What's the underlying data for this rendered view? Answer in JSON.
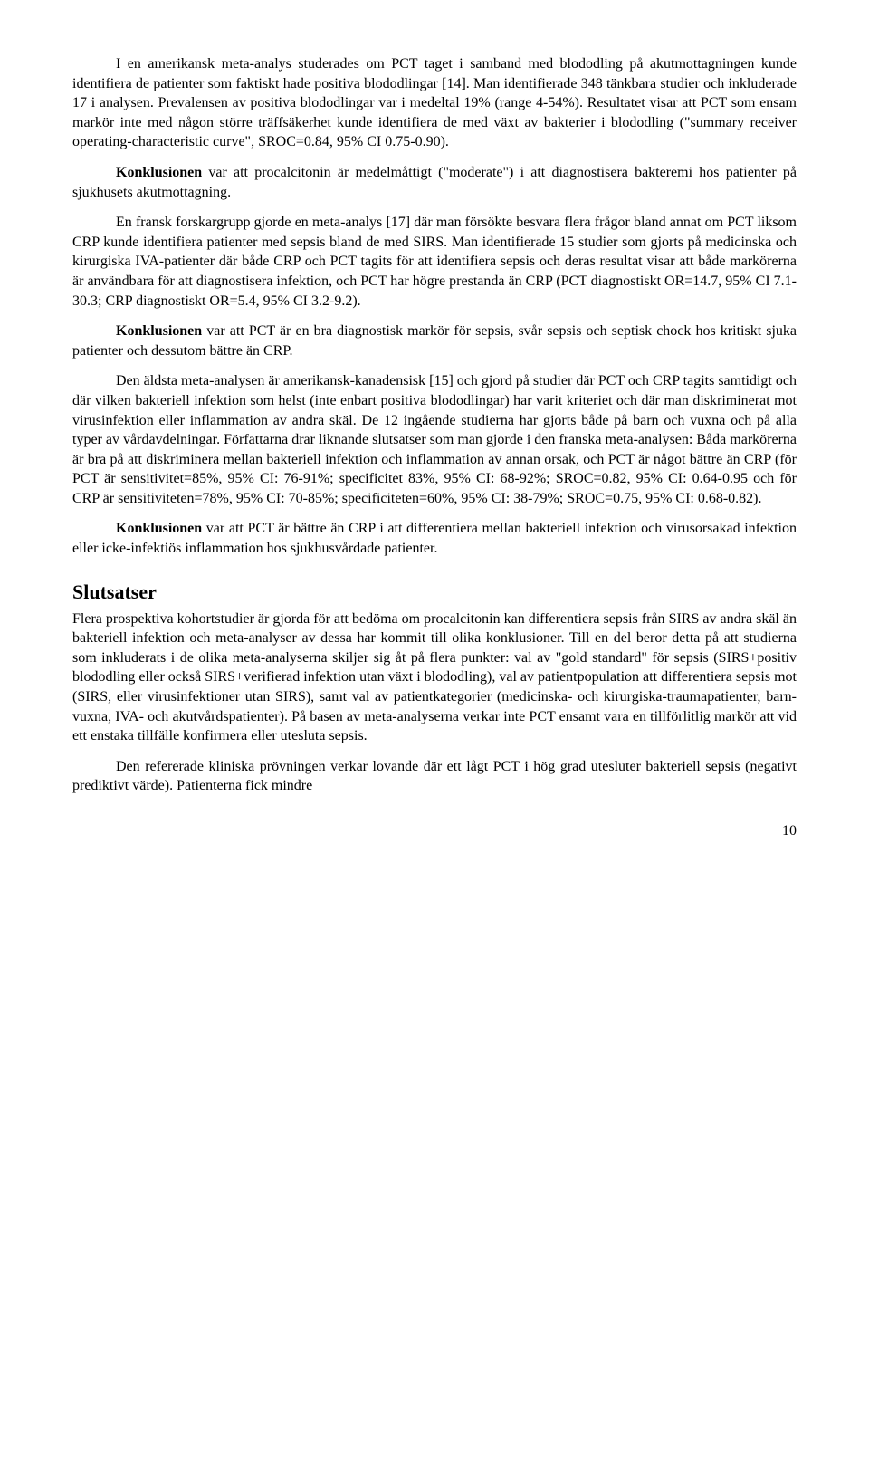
{
  "paragraphs": {
    "p1": "I en amerikansk meta-analys studerades om PCT taget i samband med blododling på akutmottagningen kunde identifiera de patienter som faktiskt hade positiva blododlingar [14]. Man identifierade 348 tänkbara studier och inkluderade 17 i analysen. Prevalensen av positiva blododlingar var i medeltal 19% (range 4-54%). Resultatet visar att PCT som ensam markör inte med någon större träffsäkerhet kunde identifiera de med växt av bakterier i blododling (\"summary receiver operating-characteristic curve\", SROC=0.84, 95% CI 0.75-0.90).",
    "p2a": "Konklusionen",
    "p2b": " var att procalcitonin är medelmåttigt (\"moderate\") i att diagnostisera bakteremi hos patienter på sjukhusets akutmottagning.",
    "p3": "En fransk forskargrupp gjorde en meta-analys [17] där man försökte besvara flera frågor bland annat om PCT liksom CRP kunde identifiera patienter med sepsis bland de med SIRS. Man identifierade 15 studier som gjorts på medicinska och kirurgiska IVA-patienter där både CRP och PCT tagits för att identifiera sepsis och deras resultat visar att både markörerna är användbara för att diagnostisera infektion, och PCT har högre prestanda än CRP (PCT diagnostiskt OR=14.7, 95% CI 7.1-30.3; CRP diagnostiskt OR=5.4, 95% CI 3.2-9.2).",
    "p4a": "Konklusionen",
    "p4b": " var att PCT är en bra diagnostisk markör för sepsis, svår sepsis och septisk chock hos kritiskt sjuka patienter och dessutom bättre än CRP.",
    "p5": "Den äldsta meta-analysen är amerikansk-kanadensisk [15] och gjord på studier där PCT och CRP tagits samtidigt och där vilken bakteriell infektion som helst (inte enbart positiva blododlingar) har varit kriteriet och där man diskriminerat mot virusinfektion eller inflammation av andra skäl. De 12 ingående studierna har gjorts både på barn och vuxna och på alla typer av vårdavdelningar. Författarna drar liknande slutsatser som man gjorde i den franska meta-analysen: Båda markörerna är bra på att diskriminera mellan bakteriell infektion och inflammation av annan orsak, och PCT är något bättre än CRP (för PCT är sensitivitet=85%, 95% CI: 76-91%; specificitet 83%, 95% CI: 68-92%; SROC=0.82, 95% CI: 0.64-0.95 och för CRP är sensitiviteten=78%, 95% CI: 70-85%; specificiteten=60%, 95% CI: 38-79%; SROC=0.75, 95% CI: 0.68-0.82).",
    "p6a": "Konklusionen",
    "p6b": " var att PCT är bättre än CRP i att differentiera mellan bakteriell infektion och virusorsakad infektion eller icke-infektiös inflammation hos sjukhusvårdade patienter.",
    "heading": "Slutsatser",
    "p7": "Flera prospektiva kohortstudier är gjorda för att bedöma om procalcitonin kan differentiera sepsis från SIRS av andra skäl än bakteriell infektion och meta-analyser av dessa har kommit till olika konklusioner. Till en del beror detta på att studierna som inkluderats i de olika meta-analyserna skiljer sig åt på flera punkter: val av \"gold standard\" för sepsis (SIRS+positiv blododling eller också SIRS+verifierad infektion utan växt i blododling), val av patientpopulation att differentiera sepsis mot (SIRS, eller virusinfektioner utan SIRS), samt val av patientkategorier (medicinska- och kirurgiska-traumapatienter, barn-vuxna, IVA- och akutvårdspatienter). På basen av meta-analyserna verkar inte PCT ensamt vara en tillförlitlig markör att vid ett enstaka tillfälle konfirmera eller utesluta sepsis.",
    "p8": "Den refererade kliniska prövningen verkar lovande där ett lågt PCT i hög grad utesluter bakteriell sepsis (negativt prediktivt värde). Patienterna fick mindre"
  },
  "pagenum": "10"
}
